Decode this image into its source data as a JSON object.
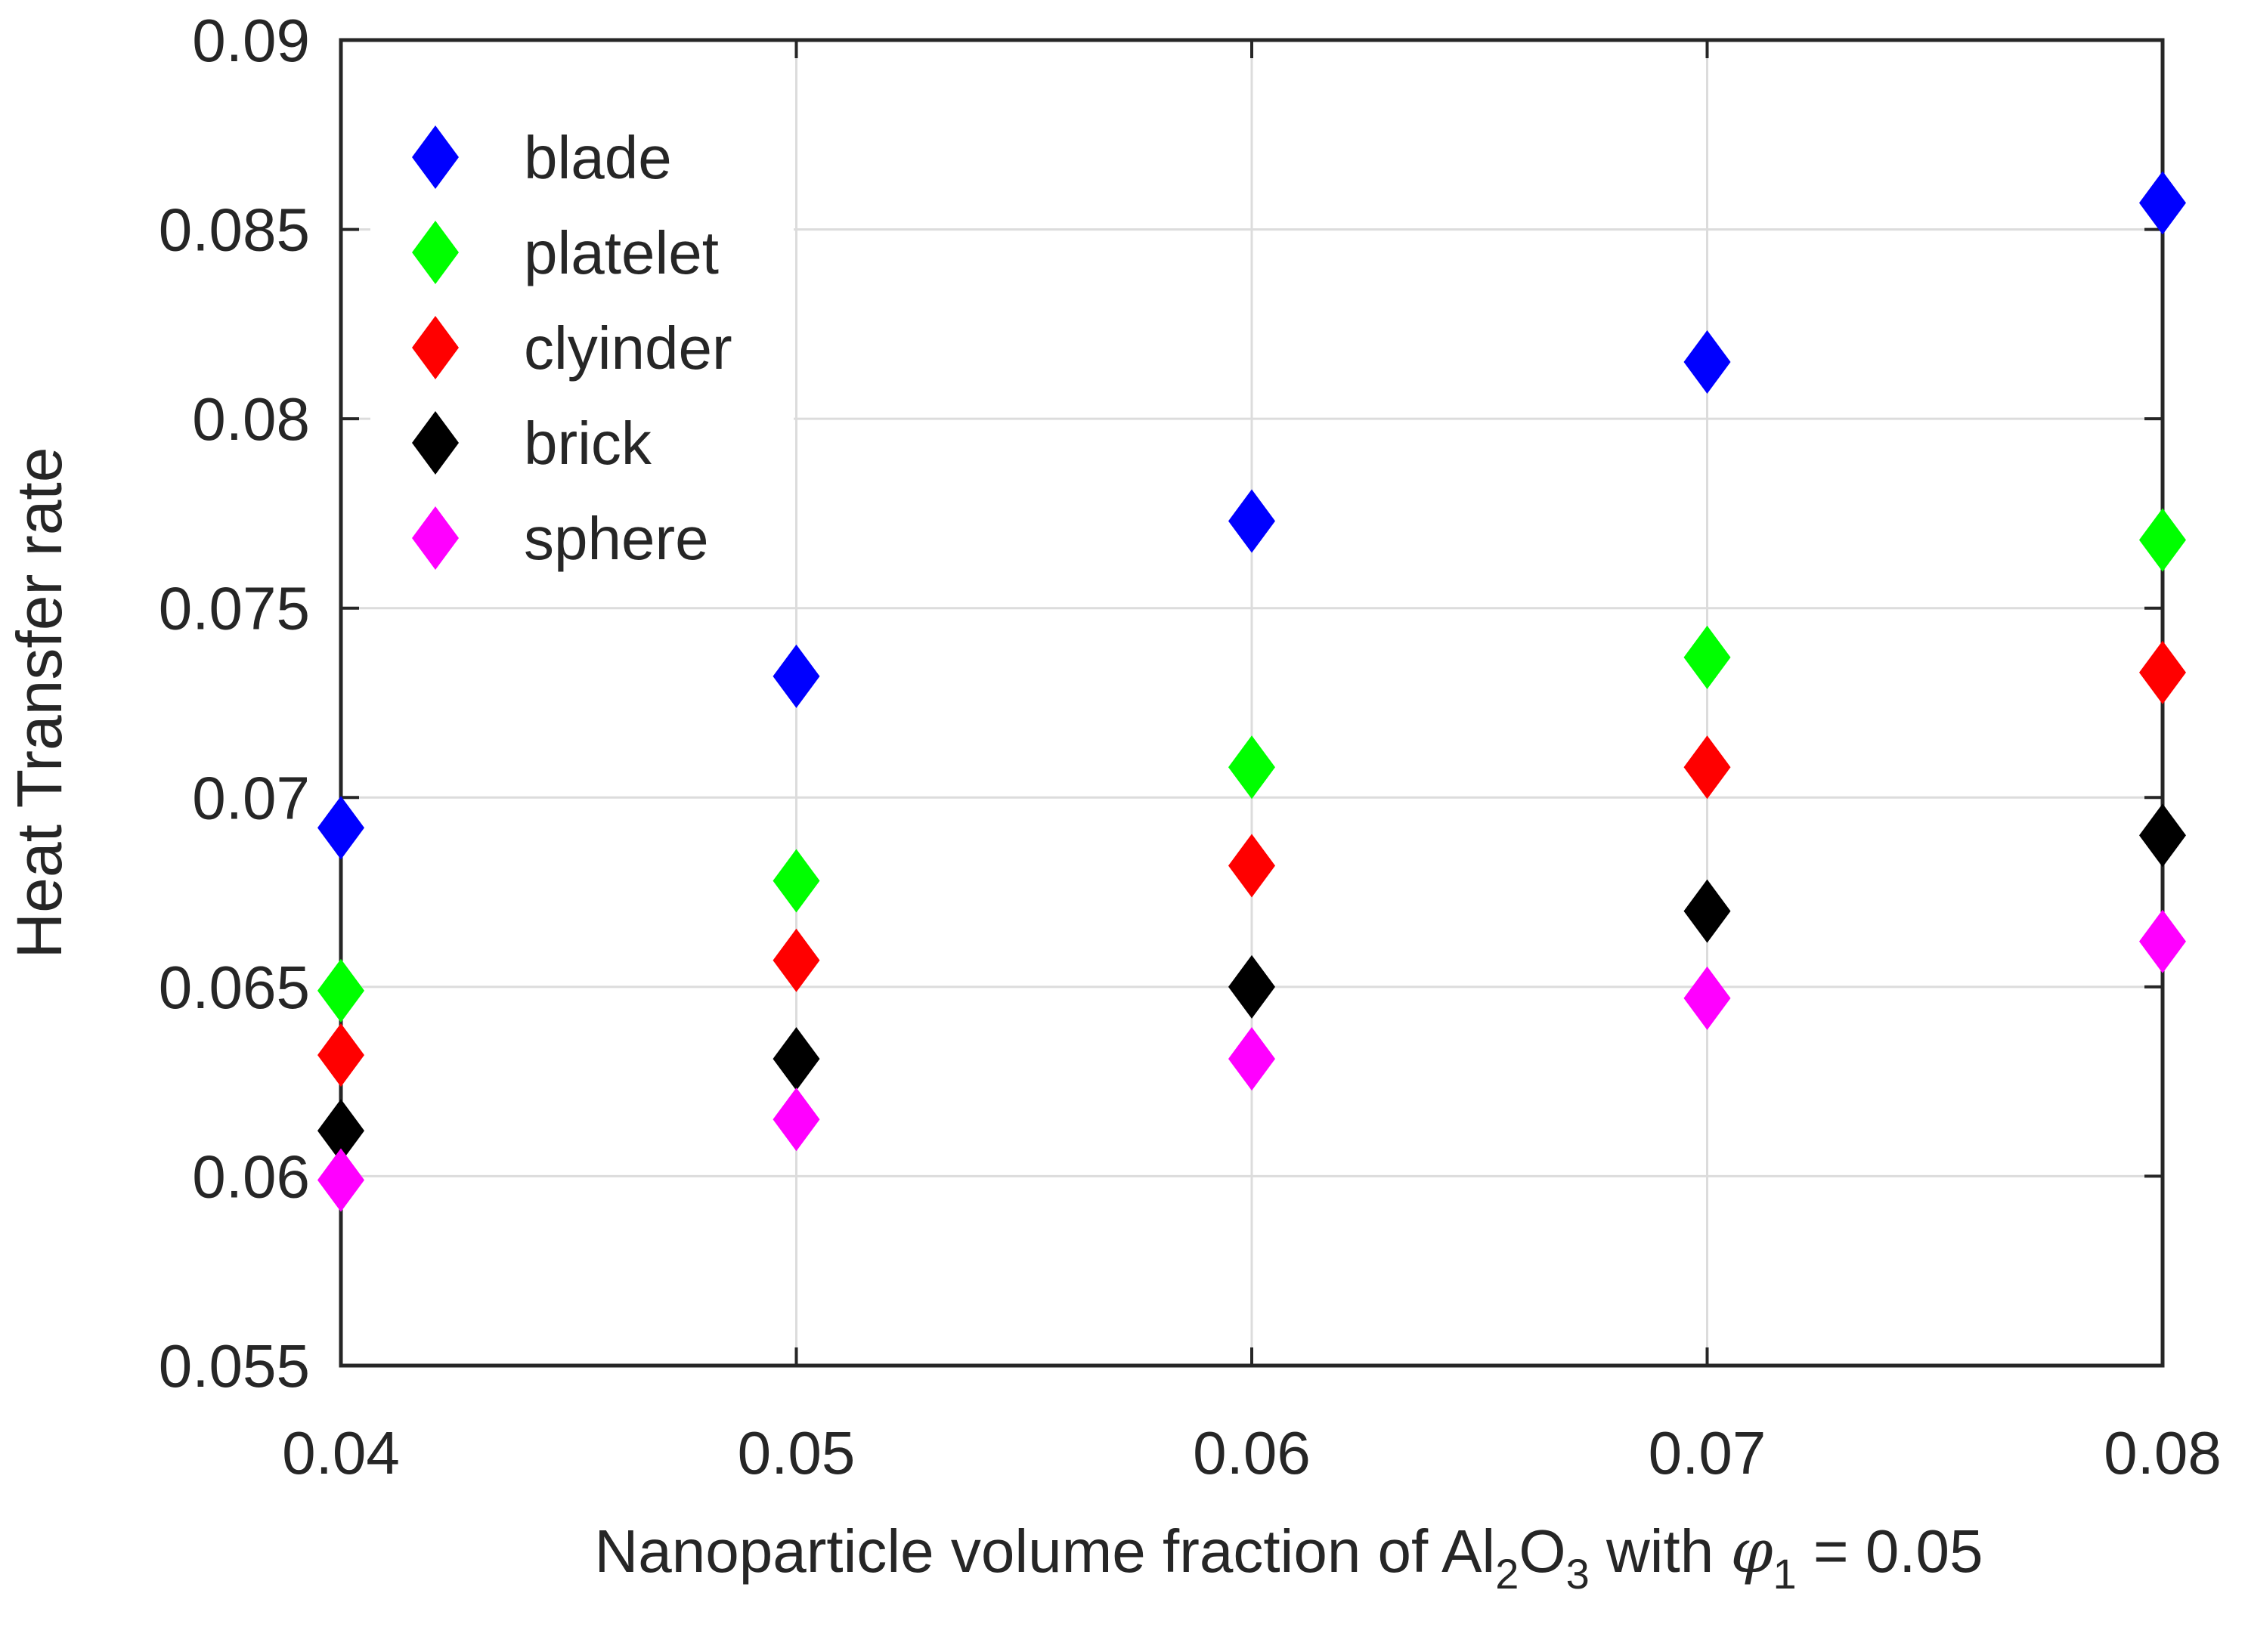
{
  "chart_data": {
    "type": "scatter",
    "title": "",
    "ylabel": "Heat Transfer rate",
    "xlabel": {
      "prefix": "Nanoparticle volume fraction of Al",
      "sub1": "2",
      "mid": "O",
      "sub2": "3",
      "mid2": " with ",
      "symbol": "φ",
      "sub3": "1",
      "suffix": " = 0.05"
    },
    "xlim": [
      0.04,
      0.08
    ],
    "ylim": [
      0.055,
      0.09
    ],
    "grid": true,
    "legend_position": "top-left",
    "x": [
      0.04,
      0.05,
      0.06,
      0.07,
      0.08
    ],
    "x_tick_labels": [
      "0.04",
      "0.05",
      "0.06",
      "0.07",
      "0.08"
    ],
    "y_ticks": [
      0.055,
      0.06,
      0.065,
      0.07,
      0.075,
      0.08,
      0.085,
      0.09
    ],
    "y_tick_labels": [
      "0.055",
      "0.06",
      "0.065",
      "0.07",
      "0.075",
      "0.08",
      "0.085",
      "0.09"
    ],
    "marker": "diamond",
    "series": [
      {
        "name": "blade",
        "color": "#0000ff",
        "values": [
          0.0692,
          0.0732,
          0.0773,
          0.0815,
          0.0857
        ]
      },
      {
        "name": "platelet",
        "color": "#00ff00",
        "values": [
          0.0649,
          0.0678,
          0.0708,
          0.0737,
          0.0768
        ]
      },
      {
        "name": "clyinder",
        "color": "#ff0000",
        "values": [
          0.0632,
          0.0657,
          0.0682,
          0.0708,
          0.0733
        ]
      },
      {
        "name": "brick",
        "color": "#000000",
        "values": [
          0.0612,
          0.0631,
          0.065,
          0.067,
          0.069
        ]
      },
      {
        "name": "sphere",
        "color": "#ff00ff",
        "values": [
          0.0599,
          0.0615,
          0.0631,
          0.0647,
          0.0662
        ]
      }
    ]
  }
}
